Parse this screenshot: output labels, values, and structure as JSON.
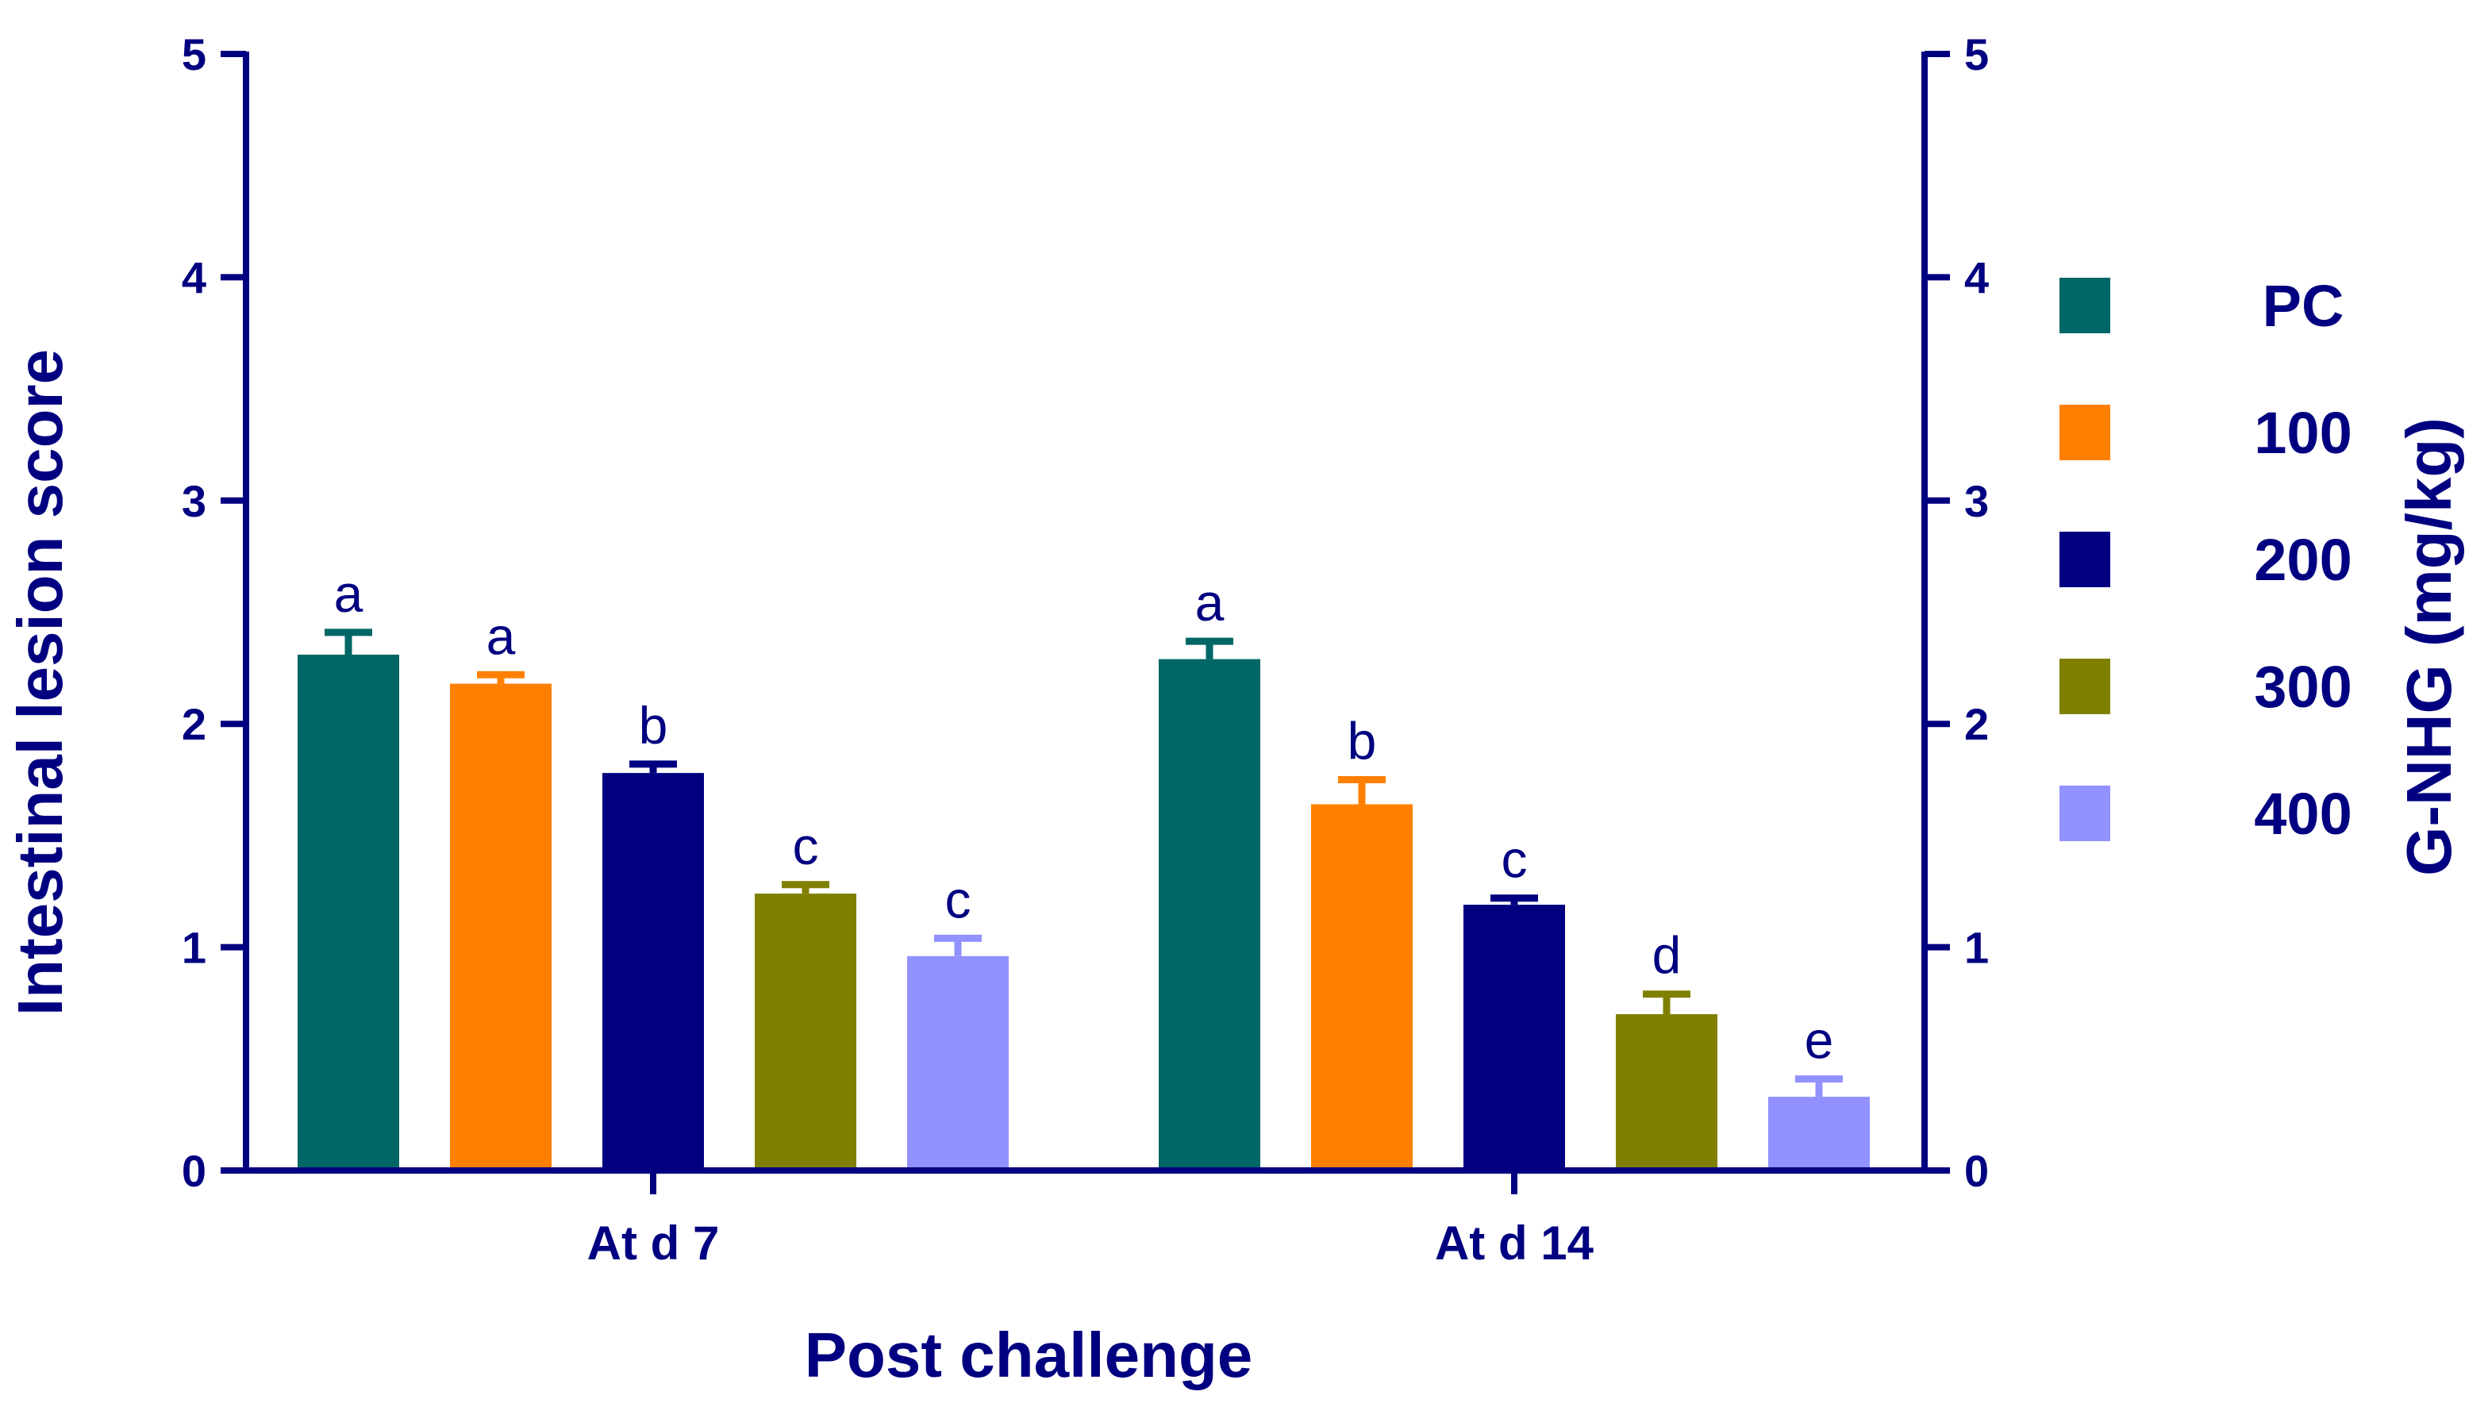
{
  "chart_data": {
    "type": "bar",
    "title": "",
    "ylabel": "Intestinal lesion score",
    "xlabel": "Post challenge",
    "y2label": "G-NHG (mg/kg)",
    "ylim": [
      0,
      5
    ],
    "y2lim": [
      0,
      5
    ],
    "yticks": [
      "0",
      "1",
      "2",
      "3",
      "4",
      "5"
    ],
    "y2ticks": [
      "0",
      "1",
      "2",
      "3",
      "4",
      "5"
    ],
    "categories": [
      "At d 7",
      "At d 14"
    ],
    "legend_position": "right",
    "grid": false,
    "series": [
      {
        "name": "PC",
        "color": "#006666",
        "values": [
          2.31,
          2.29
        ],
        "errors": [
          0.1,
          0.08
        ],
        "letters": [
          "a",
          "a"
        ]
      },
      {
        "name": "100",
        "color": "#ff8000",
        "values": [
          2.18,
          1.64
        ],
        "errors": [
          0.04,
          0.11
        ],
        "letters": [
          "a",
          "b"
        ]
      },
      {
        "name": "200",
        "color": "#000080",
        "values": [
          1.78,
          1.19
        ],
        "errors": [
          0.04,
          0.03
        ],
        "letters": [
          "b",
          "c"
        ]
      },
      {
        "name": "300",
        "color": "#808000",
        "values": [
          1.24,
          0.7
        ],
        "errors": [
          0.04,
          0.09
        ],
        "letters": [
          "c",
          "d"
        ]
      },
      {
        "name": "400",
        "color": "#9191ff",
        "values": [
          0.96,
          0.33
        ],
        "errors": [
          0.08,
          0.08
        ],
        "letters": [
          "c",
          "e"
        ]
      }
    ],
    "axis_color": "#000080"
  }
}
